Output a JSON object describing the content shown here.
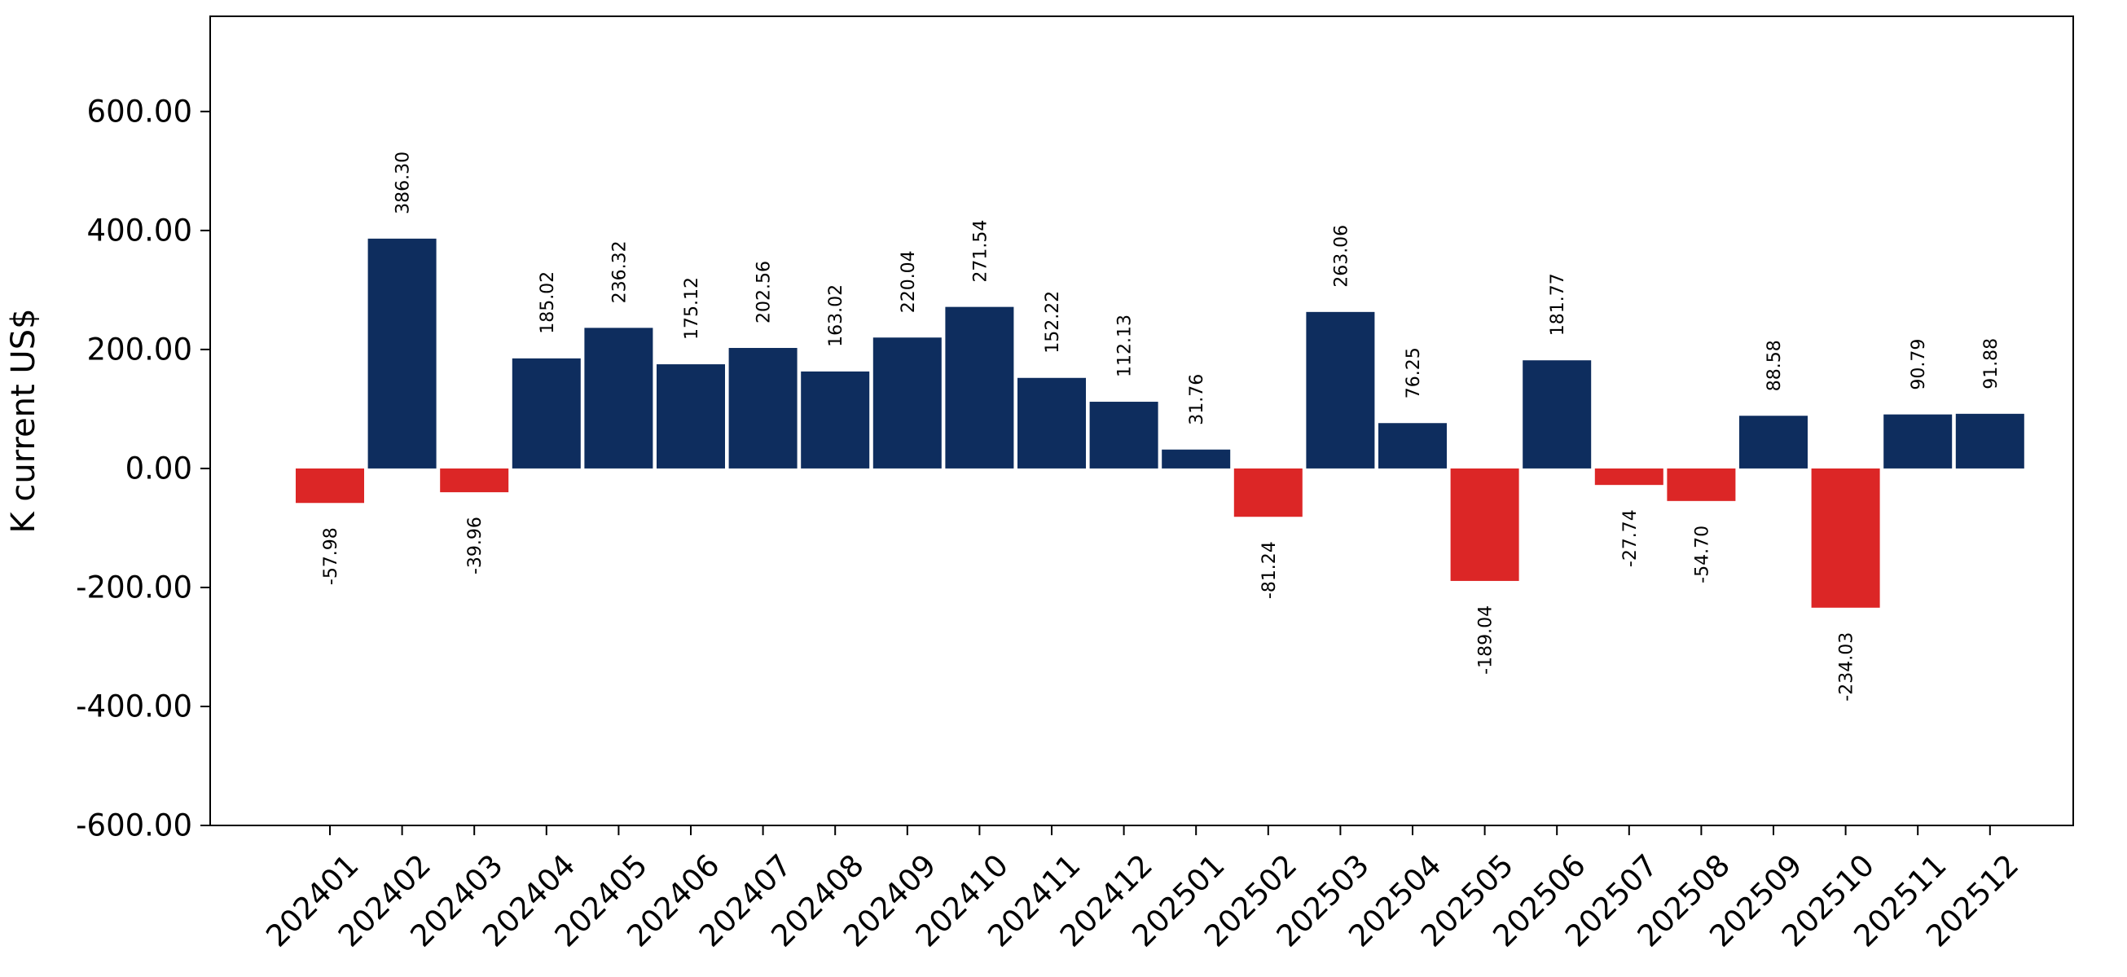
{
  "chart_data": {
    "type": "bar",
    "title": "",
    "xlabel": "",
    "ylabel": "K current US$",
    "ylim": [
      -600,
      760
    ],
    "yticks": [
      -600,
      -400,
      -200,
      0,
      200,
      400,
      600
    ],
    "ytick_labels": [
      "-600.00",
      "-400.00",
      "-200.00",
      "0.00",
      "200.00",
      "400.00",
      "600.00"
    ],
    "grid": false,
    "legend": "none",
    "colors": {
      "positive": "#0e2d5e",
      "negative": "#dc2626"
    },
    "categories": [
      "202401",
      "202402",
      "202403",
      "202404",
      "202405",
      "202406",
      "202407",
      "202408",
      "202409",
      "202410",
      "202411",
      "202412",
      "202501",
      "202502",
      "202503",
      "202504",
      "202505",
      "202506",
      "202507",
      "202508",
      "202509",
      "202510",
      "202511",
      "202512"
    ],
    "values": [
      -57.98,
      386.3,
      -39.96,
      185.02,
      236.32,
      175.12,
      202.56,
      163.02,
      220.04,
      271.54,
      152.22,
      112.13,
      31.76,
      -81.24,
      263.06,
      76.25,
      -189.04,
      181.77,
      -27.74,
      -54.7,
      88.58,
      -234.03,
      90.79,
      91.88
    ],
    "value_labels": [
      "-57.98",
      "386.30",
      "-39.96",
      "185.02",
      "236.32",
      "175.12",
      "202.56",
      "163.02",
      "220.04",
      "271.54",
      "152.22",
      "112.13",
      "31.76",
      "-81.24",
      "263.06",
      "76.25",
      "-189.04",
      "181.77",
      "-27.74",
      "-54.70",
      "88.58",
      "-234.03",
      "90.79",
      "91.88"
    ]
  }
}
